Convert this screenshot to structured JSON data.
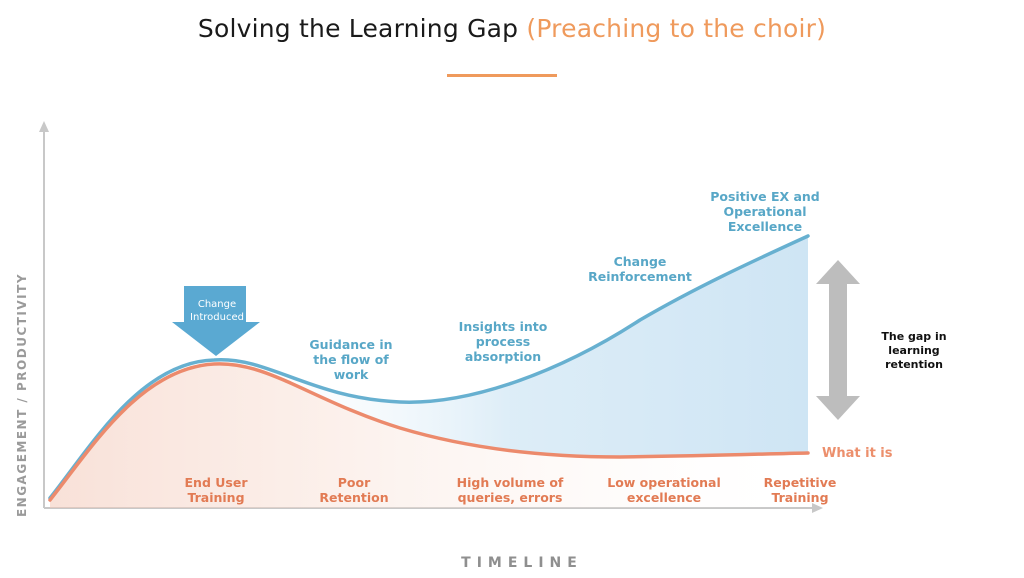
{
  "title": {
    "main": "Solving the Learning Gap",
    "accent": "(Preaching to the choir)"
  },
  "axes": {
    "y_label": "ENGAGEMENT / PRODUCTIVITY",
    "x_label": "TIMELINE"
  },
  "callout": {
    "label": "Change\nIntroduced"
  },
  "upper_labels": [
    {
      "key": "guidance",
      "text": "Guidance in\nthe flow of\nwork"
    },
    {
      "key": "insights",
      "text": "Insights into\nprocess\nabsorption"
    },
    {
      "key": "reinforcement",
      "text": "Change\nReinforcement"
    },
    {
      "key": "positive",
      "text": "Positive EX and\nOperational\nExcellence"
    }
  ],
  "lower_labels": [
    {
      "key": "end-user-training",
      "text": "End User\nTraining"
    },
    {
      "key": "poor-retention",
      "text": "Poor\nRetention"
    },
    {
      "key": "high-volume",
      "text": "High volume of\nqueries, errors"
    },
    {
      "key": "low-excellence",
      "text": "Low operational\nexcellence"
    },
    {
      "key": "repetitive-training",
      "text": "Repetitive\nTraining"
    }
  ],
  "gap_label": "The gap in learning\nretention",
  "line_label": "What it is",
  "colors": {
    "blue_line": "#67b0d0",
    "orange_line": "#ec8a6c",
    "accent": "#ef9a5c",
    "gap_arrow": "#bdbdbd",
    "callout_arrow": "#5aa9d2"
  }
}
